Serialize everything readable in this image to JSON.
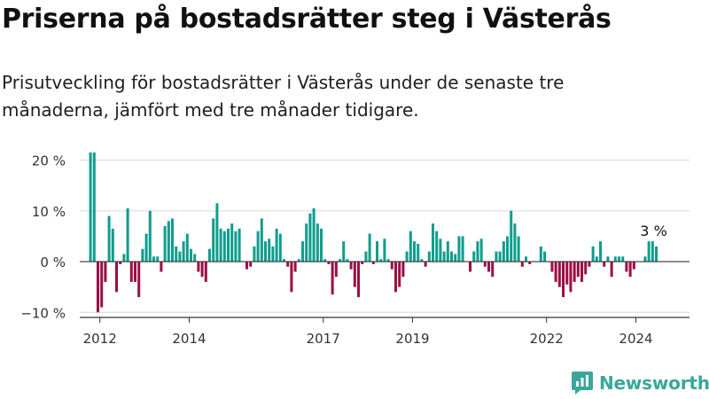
{
  "title": "Priserna på bostadsrätter steg i Västerås",
  "subtitle": "Prisutveckling för bostadsrätter i Västerås under de senaste tre månaderna, jämfört med tre månader tidigare.",
  "brand": {
    "name": "Newsworthy"
  },
  "colors": {
    "positive": "#0f9d8e",
    "negative": "#9c0f45",
    "axis": "#333333",
    "grid": "#d9d9d9",
    "brand": "#3aa79a"
  },
  "chart_data": {
    "type": "bar",
    "x_start": 2011.79,
    "x_step": 0.0833333,
    "xlim": [
      2011.55,
      2025.2
    ],
    "ylim": [
      -11,
      21.5
    ],
    "yticks": [
      20,
      10,
      0,
      -10
    ],
    "ytick_labels": [
      "20 %",
      "10 %",
      "0 %",
      "−10 %"
    ],
    "xticks": [
      2012,
      2014,
      2017,
      2019,
      2022,
      2024
    ],
    "xtick_labels": [
      "2012",
      "2014",
      "2017",
      "2019",
      "2022",
      "2024"
    ],
    "annotation": {
      "label": "3 %",
      "index": 152
    },
    "values": [
      21.5,
      21.5,
      -10,
      -9,
      -4,
      9,
      6.5,
      -6,
      -0.5,
      1.5,
      10.5,
      -4,
      -4,
      -7,
      2.5,
      5.5,
      10,
      1,
      1,
      -2,
      7,
      8,
      8.5,
      3,
      2,
      4,
      5.5,
      2.5,
      1.5,
      -2,
      -3,
      -4,
      2.5,
      8.5,
      11.5,
      6.5,
      6,
      6.5,
      7.5,
      6,
      6.5,
      0,
      -1.5,
      -1,
      3,
      6,
      8.5,
      4,
      4.5,
      3,
      6.5,
      5.5,
      0.5,
      -1,
      -6,
      -2,
      0.5,
      4,
      7.5,
      9.5,
      10.5,
      7.5,
      6.5,
      0.5,
      -0.5,
      -6.5,
      -3,
      0.5,
      4,
      0.5,
      -1.5,
      -5,
      -7,
      -0.5,
      2,
      5.5,
      -0.5,
      4,
      0.5,
      4.5,
      0.5,
      -1.5,
      -6,
      -5,
      -3,
      2,
      6,
      4,
      3.5,
      0.5,
      -1,
      2,
      7.5,
      6,
      4.5,
      2,
      4,
      2,
      1.5,
      5,
      5,
      0,
      -2,
      2,
      4,
      4.5,
      -1,
      -2,
      -3,
      2,
      2,
      4,
      5,
      10,
      7.5,
      5,
      -1,
      1,
      -0.5,
      0,
      0,
      3,
      2,
      0,
      -2,
      -4,
      -5,
      -7,
      -4.5,
      -6,
      -4,
      -3,
      -4,
      -2.5,
      -1,
      3,
      1,
      4,
      -1,
      1,
      -3,
      1,
      1,
      1,
      -2,
      -3,
      -1.5,
      0,
      0,
      1,
      4,
      4,
      3
    ]
  }
}
